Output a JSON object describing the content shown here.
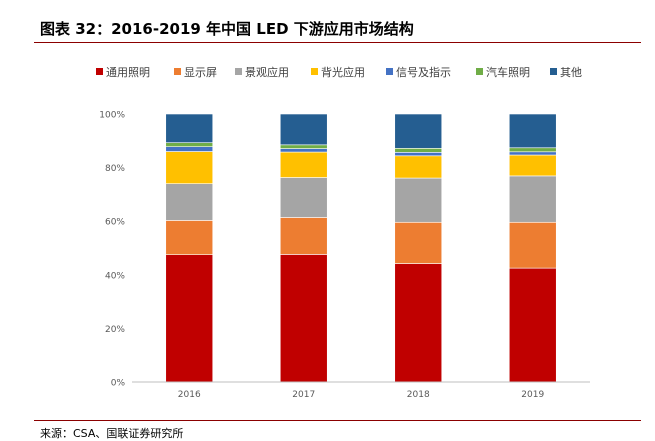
{
  "title": "图表 32：2016-2019 年中国 LED 下游应用市场结构",
  "source": "来源：CSA、国联证券研究所",
  "chart_data": {
    "type": "bar",
    "stacked": true,
    "title": "图表 32：2016-2019 年中国 LED 下游应用市场结构",
    "categories": [
      "2016",
      "2017",
      "2018",
      "2019"
    ],
    "ylim": [
      0,
      100
    ],
    "yticks": [
      "0%",
      "20%",
      "40%",
      "60%",
      "80%",
      "100%"
    ],
    "legend_position": "top",
    "grid": false,
    "series": [
      {
        "name": "通用照明",
        "color": "#c00000",
        "values": [
          47.5,
          47.6,
          44.2,
          42.5
        ]
      },
      {
        "name": "显示屏",
        "color": "#ed7d31",
        "values": [
          12.8,
          13.8,
          15.4,
          17.1
        ]
      },
      {
        "name": "景观应用",
        "color": "#a5a5a5",
        "values": [
          13.7,
          14.9,
          16.5,
          17.3
        ]
      },
      {
        "name": "背光应用",
        "color": "#ffc000",
        "values": [
          12.0,
          9.5,
          8.3,
          7.8
        ]
      },
      {
        "name": "信号及指示",
        "color": "#4472c4",
        "values": [
          1.8,
          1.3,
          1.3,
          1.2
        ]
      },
      {
        "name": "汽车照明",
        "color": "#70ad47",
        "values": [
          1.5,
          1.4,
          1.5,
          1.5
        ]
      },
      {
        "name": "其他",
        "color": "#255e91",
        "values": [
          10.7,
          11.5,
          12.8,
          12.6
        ]
      }
    ]
  }
}
